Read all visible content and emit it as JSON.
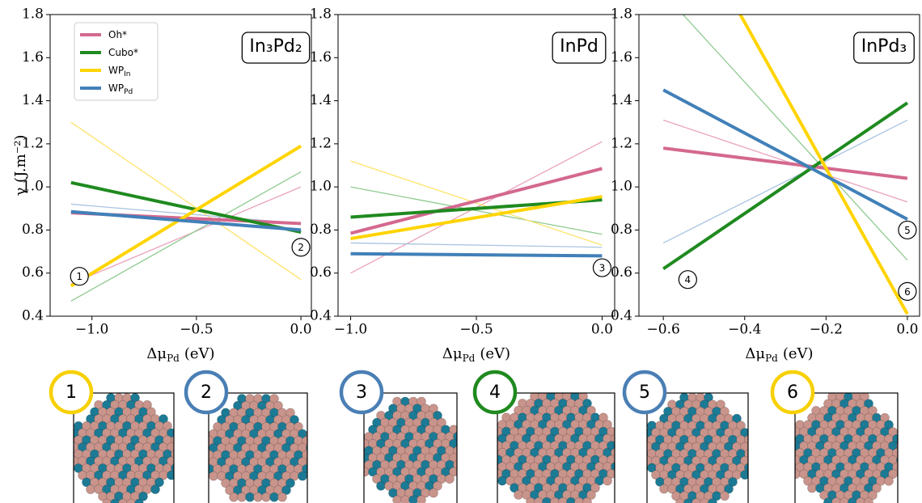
{
  "chart_data": [
    {
      "type": "line",
      "label": "In₃Pd₂",
      "ylabel": "γ (J.m⁻²)",
      "xlabel": "Δμ",
      "xlabel_sub": "Pd",
      "xlabel_unit": "(eV)",
      "legend": "upper left",
      "x": [
        -1.1,
        0
      ],
      "xlim": [
        -1.2,
        0.05
      ],
      "ylim": [
        0.4,
        1.8
      ],
      "xticks": [
        {
          "value": -1,
          "label": "−1.0"
        },
        {
          "value": -0.5,
          "label": "−0.5"
        },
        {
          "value": 0,
          "label": "0.0"
        }
      ],
      "yticks": [
        0.4,
        0.6,
        0.8,
        {
          "value": 1,
          "label": "1.0"
        },
        1.2,
        1.4,
        1.6,
        1.8
      ],
      "series": [
        {
          "style": "thin",
          "color": "#eaa3bd",
          "values": [
            0.55,
            1.0
          ]
        },
        {
          "style": "thin",
          "color": "#8fca8f",
          "values": [
            0.47,
            1.07
          ]
        },
        {
          "style": "thin",
          "color": "#ffe36a",
          "values": [
            1.3,
            0.57
          ]
        },
        {
          "style": "thin",
          "color": "#a9c4e2",
          "values": [
            0.92,
            0.83
          ]
        },
        {
          "style": "thick",
          "name": "Oh*",
          "color": "#d4688f",
          "values": [
            0.88,
            0.83
          ]
        },
        {
          "style": "thick",
          "name": "Cubo*",
          "color": "#1f8a1f",
          "values": [
            1.02,
            0.79
          ]
        },
        {
          "style": "thick",
          "name": "WP",
          "name_sub": "In",
          "color": "#ffd400",
          "values": [
            0.54,
            1.19
          ]
        },
        {
          "style": "thick",
          "name": "WP",
          "name_sub": "Pd",
          "color": "#4180b8",
          "values": [
            0.885,
            0.8
          ]
        }
      ],
      "annotations": [
        {
          "text": "1",
          "x": -1.06,
          "y": 0.585
        },
        {
          "text": "2",
          "x": 0,
          "y": 0.72
        }
      ]
    },
    {
      "type": "line",
      "label": "InPd",
      "xlabel": "Δμ",
      "xlabel_sub": "Pd",
      "xlabel_unit": "(eV)",
      "x": [
        -1,
        0
      ],
      "xlim": [
        -1.05,
        0.05
      ],
      "ylim": [
        0.4,
        1.8
      ],
      "xticks": [
        {
          "value": -1,
          "label": "−1.0"
        },
        {
          "value": -0.5,
          "label": "−0.5"
        },
        {
          "value": 0,
          "label": "0.0"
        }
      ],
      "yticks": [
        0.4,
        0.6,
        0.8,
        {
          "value": 1,
          "label": "1.0"
        },
        1.2,
        1.4,
        1.6,
        1.8
      ],
      "series": [
        {
          "style": "thin",
          "color": "#eaa3bd",
          "values": [
            0.6,
            1.21
          ]
        },
        {
          "style": "thin",
          "color": "#8fca8f",
          "values": [
            1.0,
            0.78
          ]
        },
        {
          "style": "thin",
          "color": "#ffe36a",
          "values": [
            1.12,
            0.73
          ]
        },
        {
          "style": "thin",
          "color": "#a9c4e2",
          "values": [
            0.74,
            0.72
          ]
        },
        {
          "style": "thick",
          "color": "#d4688f",
          "values": [
            0.785,
            1.085
          ]
        },
        {
          "style": "thick",
          "color": "#1f8a1f",
          "values": [
            0.86,
            0.94
          ]
        },
        {
          "style": "thick",
          "color": "#ffd400",
          "values": [
            0.76,
            0.955
          ]
        },
        {
          "style": "thick",
          "color": "#4180b8",
          "values": [
            0.69,
            0.68
          ]
        }
      ],
      "annotations": [
        {
          "text": "3",
          "x": 0,
          "y": 0.625
        }
      ]
    },
    {
      "type": "line",
      "label": "InPd₃",
      "xlabel": "Δμ",
      "xlabel_sub": "Pd",
      "xlabel_unit": "(eV)",
      "x": [
        -0.6,
        0
      ],
      "xlim": [
        -0.66,
        0.03
      ],
      "ylim": [
        0.4,
        1.8
      ],
      "xticks": [
        {
          "value": -0.6,
          "label": "−0.6"
        },
        {
          "value": -0.4,
          "label": "−0.4"
        },
        {
          "value": -0.2,
          "label": "−0.2"
        },
        {
          "value": 0,
          "label": "0.0"
        }
      ],
      "yticks": [
        0.4,
        0.6,
        0.8,
        {
          "value": 1,
          "label": "1.0"
        },
        1.2,
        1.4,
        1.6,
        1.8
      ],
      "series": [
        {
          "style": "thin",
          "color": "#eaa3bd",
          "values": [
            1.31,
            0.93
          ]
        },
        {
          "style": "thin",
          "color": "#8fca8f",
          "values": [
            1.9,
            0.66
          ]
        },
        {
          "style": "thin",
          "color": "#a9c4e2",
          "values": [
            0.74,
            1.31
          ]
        },
        {
          "style": "thick",
          "color": "#d4688f",
          "values": [
            1.18,
            1.04
          ]
        },
        {
          "style": "thick",
          "color": "#1f8a1f",
          "values": [
            0.62,
            1.39
          ]
        },
        {
          "style": "thick",
          "color": "#ffd400",
          "values": [
            2.44,
            0.41
          ]
        },
        {
          "style": "thick",
          "color": "#4180b8",
          "values": [
            1.45,
            0.85
          ]
        }
      ],
      "annotations": [
        {
          "text": "4",
          "x": -0.54,
          "y": 0.57
        },
        {
          "text": "5",
          "x": 0,
          "y": 0.8
        },
        {
          "text": "6",
          "x": 0,
          "y": 0.515
        }
      ]
    }
  ],
  "particles": [
    {
      "label": "1",
      "color": "#f7d000"
    },
    {
      "label": "2",
      "color": "#4a7fb5"
    },
    {
      "label": "3",
      "color": "#4a7fb5"
    },
    {
      "label": "4",
      "color": "#1f8a1f"
    },
    {
      "label": "5",
      "color": "#4a7fb5"
    },
    {
      "label": "6",
      "color": "#f7d000"
    }
  ]
}
